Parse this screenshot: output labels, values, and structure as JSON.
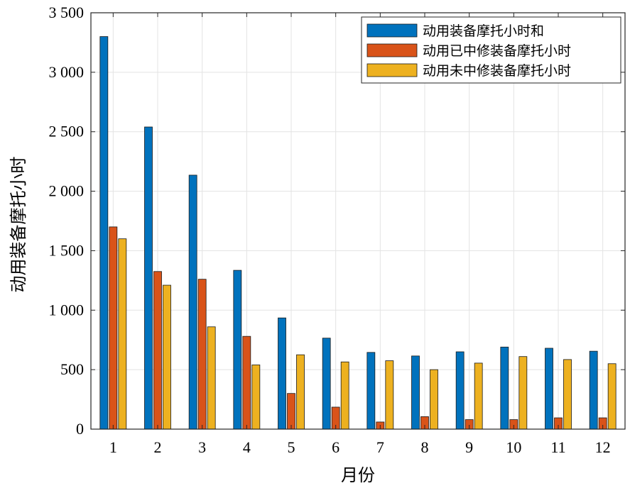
{
  "chart_data": {
    "type": "bar",
    "categories": [
      "1",
      "2",
      "3",
      "4",
      "5",
      "6",
      "7",
      "8",
      "9",
      "10",
      "11",
      "12"
    ],
    "series": [
      {
        "name": "动用装备摩托小时和",
        "color": "#0072BD",
        "values": [
          3300,
          2540,
          2135,
          1335,
          935,
          765,
          645,
          615,
          650,
          690,
          680,
          655
        ]
      },
      {
        "name": "动用已中修装备摩托小时",
        "color": "#D95319",
        "values": [
          1700,
          1325,
          1260,
          780,
          300,
          185,
          60,
          105,
          80,
          80,
          95,
          95
        ]
      },
      {
        "name": "动用未中修装备摩托小时",
        "color": "#EDB120",
        "values": [
          1600,
          1210,
          860,
          540,
          625,
          565,
          575,
          500,
          555,
          610,
          585,
          550
        ]
      }
    ],
    "xlabel": "月份",
    "ylabel": "动用装备摩托小时",
    "ylim": [
      0,
      3500
    ],
    "yticks": [
      0,
      500,
      1000,
      1500,
      2000,
      2500,
      3000,
      3500
    ],
    "ytick_labels": [
      "0",
      "500",
      "1 000",
      "1 500",
      "2 000",
      "2 500",
      "3 000",
      "3 500"
    ],
    "grid": true,
    "legend_position": "top-right"
  }
}
